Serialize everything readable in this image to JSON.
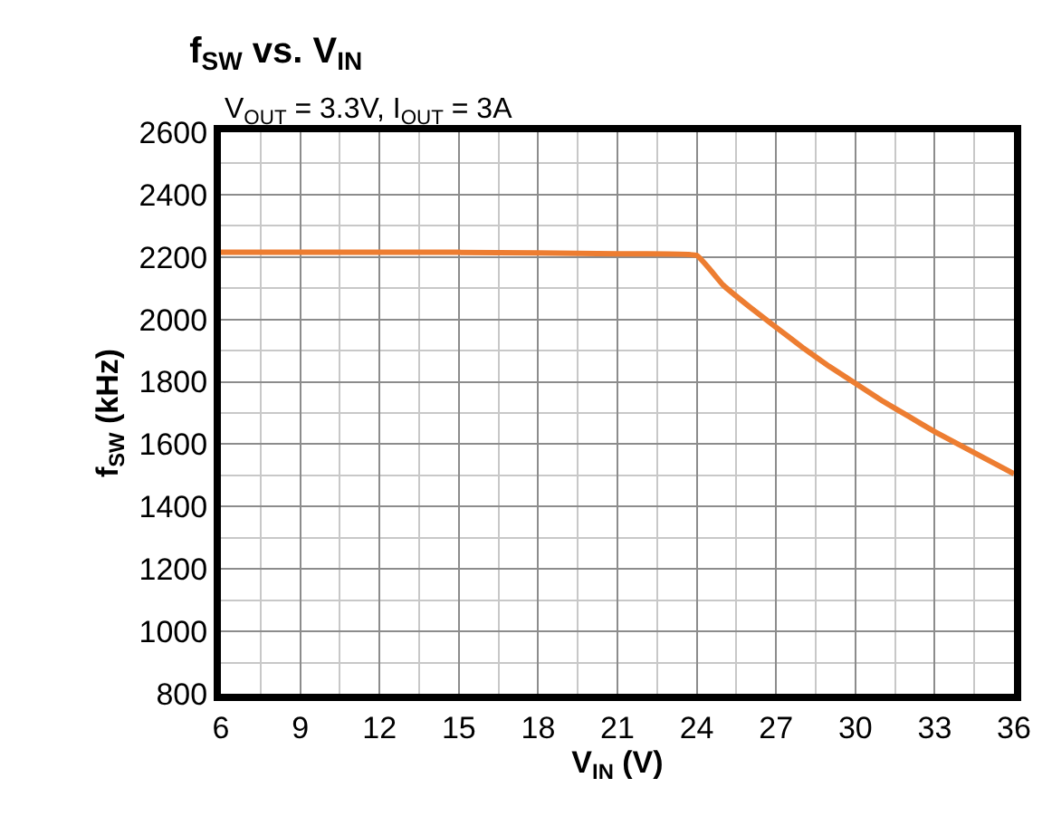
{
  "chart_data": {
    "type": "line",
    "title": "f$_{SW}$ vs. V$_{IN}$",
    "subtitle": "V$_{OUT}$ = 3.3V, I$_{OUT}$ = 3A",
    "xlabel": "V$_{IN}$ (V)",
    "ylabel": "f$_{SW}$ (kHz)",
    "x": [
      6,
      9,
      12,
      15,
      18,
      21,
      24,
      25,
      26,
      27,
      28,
      29,
      30,
      31,
      32,
      33,
      34,
      35,
      36
    ],
    "series": [
      {
        "color": "#ed7d31",
        "values": [
          2215,
          2215,
          2215,
          2215,
          2213,
          2210,
          2205,
          2110,
          2040,
          1975,
          1910,
          1850,
          1795,
          1740,
          1690,
          1640,
          1595,
          1550,
          1505
        ]
      }
    ],
    "xlim": [
      6,
      36
    ],
    "xticks": [
      6,
      9,
      12,
      15,
      18,
      21,
      24,
      27,
      30,
      33,
      36
    ],
    "ylim": [
      800,
      2600
    ],
    "yticks": [
      800,
      1000,
      1200,
      1400,
      1600,
      1800,
      2000,
      2200,
      2400,
      2600
    ],
    "grid": true,
    "legend": false,
    "marker": "none",
    "line_style": "solid"
  }
}
